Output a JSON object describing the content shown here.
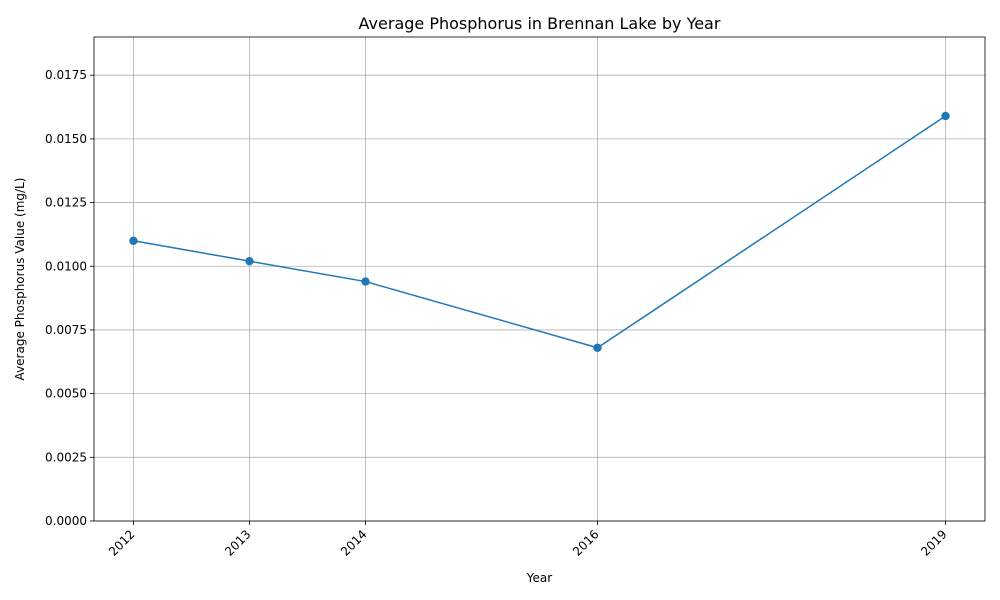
{
  "chart_data": {
    "type": "line",
    "title": "Average Phosphorus in Brennan Lake by Year",
    "xlabel": "Year",
    "ylabel": "Average Phosphorus Value (mg/L)",
    "x": [
      2012,
      2013,
      2014,
      2016,
      2019
    ],
    "x_tick_labels": [
      "2012",
      "2013",
      "2014",
      "2016",
      "2019"
    ],
    "series": [
      {
        "values": [
          0.011,
          0.0102,
          0.0094,
          0.0068,
          0.0159
        ],
        "color": "#1f77b4",
        "marker": "circle"
      }
    ],
    "ylim": [
      0,
      0.019
    ],
    "xlim": [
      2011.66,
      2019.34
    ],
    "y_ticks": [
      0,
      0.0025,
      0.005,
      0.0075,
      0.01,
      0.0125,
      0.015,
      0.0175
    ],
    "y_tick_labels": [
      "0.0000",
      "0.0025",
      "0.0050",
      "0.0075",
      "0.0100",
      "0.0125",
      "0.0150",
      "0.0175"
    ],
    "grid": true,
    "x_tick_rotation": 45
  }
}
